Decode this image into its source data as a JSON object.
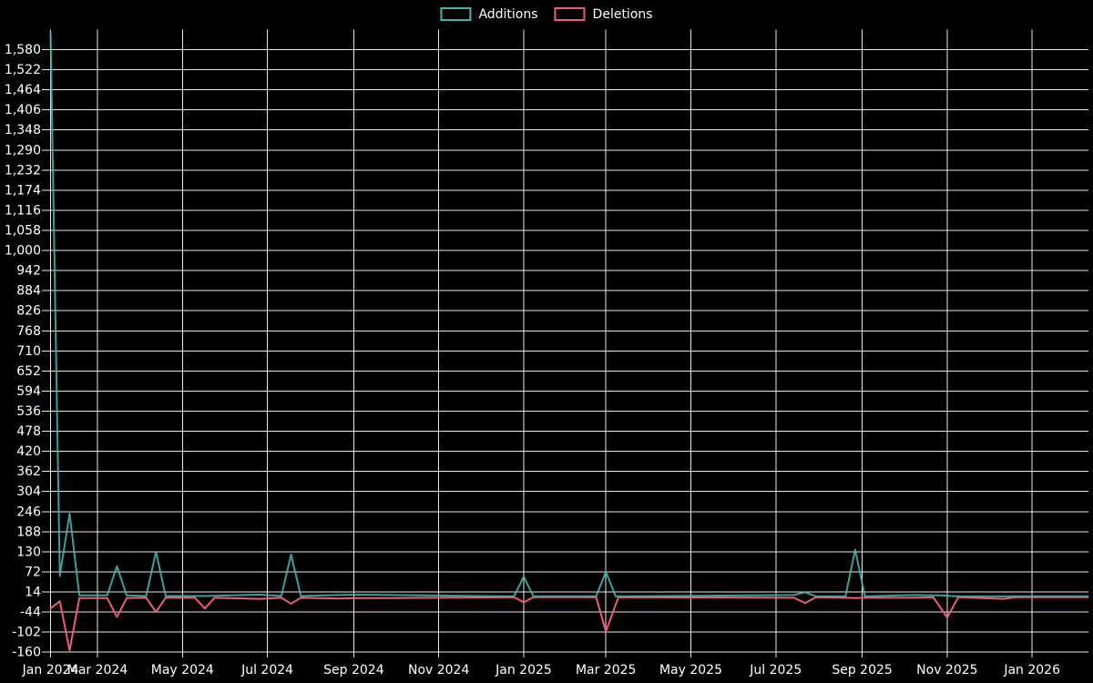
{
  "chart_data": {
    "type": "line",
    "title": "",
    "background_color": "#000000",
    "grid": {
      "visible": true,
      "color": "#e8e8e8"
    },
    "text_color": "#ffffff",
    "legend": [
      {
        "label": "Additions",
        "color": "#45b5b0"
      },
      {
        "label": "Deletions",
        "color": "#ef5b7b"
      }
    ],
    "legend_position": "top-center",
    "y_axis": {
      "min": -160,
      "max": 1580,
      "step": 58,
      "tick_labels": [
        "-160",
        "-102",
        "-44",
        "14",
        "72",
        "130",
        "188",
        "246",
        "304",
        "362",
        "420",
        "478",
        "536",
        "594",
        "652",
        "710",
        "768",
        "826",
        "884",
        "942",
        "1,000",
        "1,058",
        "1,116",
        "1,174",
        "1,232",
        "1,290",
        "1,348",
        "1,406",
        "1,464",
        "1,522",
        "1,580"
      ]
    },
    "x_axis": {
      "ticks": [
        {
          "label": "Jan 2024",
          "date": "2024-01-27"
        },
        {
          "label": "Mar 2024",
          "date": "2024-03-01"
        },
        {
          "label": "May 2024",
          "date": "2024-05-01"
        },
        {
          "label": "Jul 2024",
          "date": "2024-07-01"
        },
        {
          "label": "Sep 2024",
          "date": "2024-09-01"
        },
        {
          "label": "Nov 2024",
          "date": "2024-11-01"
        },
        {
          "label": "Jan 2025",
          "date": "2025-01-01"
        },
        {
          "label": "Mar 2025",
          "date": "2025-03-01"
        },
        {
          "label": "May 2025",
          "date": "2025-05-01"
        },
        {
          "label": "Jul 2025",
          "date": "2025-07-01"
        },
        {
          "label": "Sep 2025",
          "date": "2025-09-01"
        },
        {
          "label": "Nov 2025",
          "date": "2025-11-01"
        },
        {
          "label": "Jan 2026",
          "date": "2026-01-01"
        }
      ]
    },
    "series": [
      {
        "name": "Additions",
        "color": "#45b5b0",
        "points": [
          [
            "2024-01-27",
            1630
          ],
          [
            "2024-02-03",
            60
          ],
          [
            "2024-02-10",
            240
          ],
          [
            "2024-02-17",
            4
          ],
          [
            "2024-03-08",
            4
          ],
          [
            "2024-03-15",
            88
          ],
          [
            "2024-03-22",
            4
          ],
          [
            "2024-04-05",
            2
          ],
          [
            "2024-04-12",
            130
          ],
          [
            "2024-04-19",
            2
          ],
          [
            "2024-05-17",
            2
          ],
          [
            "2024-06-26",
            6
          ],
          [
            "2024-07-11",
            2
          ],
          [
            "2024-07-18",
            122
          ],
          [
            "2024-07-25",
            2
          ],
          [
            "2024-08-21",
            5
          ],
          [
            "2024-09-06",
            6
          ],
          [
            "2024-09-27",
            5
          ],
          [
            "2024-12-25",
            1
          ],
          [
            "2025-01-01",
            58
          ],
          [
            "2025-01-08",
            1
          ],
          [
            "2025-02-22",
            1
          ],
          [
            "2025-03-01",
            72
          ],
          [
            "2025-03-08",
            1
          ],
          [
            "2025-07-14",
            5
          ],
          [
            "2025-07-22",
            13
          ],
          [
            "2025-07-30",
            1
          ],
          [
            "2025-08-20",
            1
          ],
          [
            "2025-08-27",
            136
          ],
          [
            "2025-09-03",
            1
          ],
          [
            "2025-10-08",
            5
          ],
          [
            "2025-10-27",
            4
          ],
          [
            "2025-11-08",
            1
          ],
          [
            "2026-02-10",
            1
          ]
        ]
      },
      {
        "name": "Deletions",
        "color": "#ef5b7b",
        "points": [
          [
            "2024-01-27",
            -34
          ],
          [
            "2024-02-03",
            -13
          ],
          [
            "2024-02-10",
            -155
          ],
          [
            "2024-02-17",
            -4
          ],
          [
            "2024-03-08",
            -4
          ],
          [
            "2024-03-15",
            -58
          ],
          [
            "2024-03-22",
            -4
          ],
          [
            "2024-04-05",
            -3
          ],
          [
            "2024-04-12",
            -44
          ],
          [
            "2024-04-19",
            -3
          ],
          [
            "2024-05-10",
            -3
          ],
          [
            "2024-05-17",
            -34
          ],
          [
            "2024-05-24",
            -3
          ],
          [
            "2024-06-26",
            -6
          ],
          [
            "2024-07-11",
            -3
          ],
          [
            "2024-07-18",
            -20
          ],
          [
            "2024-07-25",
            -3
          ],
          [
            "2024-08-21",
            -5
          ],
          [
            "2024-09-06",
            -4
          ],
          [
            "2024-09-27",
            -4
          ],
          [
            "2024-12-25",
            -1
          ],
          [
            "2025-01-01",
            -16
          ],
          [
            "2025-01-08",
            -1
          ],
          [
            "2025-02-22",
            -1
          ],
          [
            "2025-03-01",
            -100
          ],
          [
            "2025-03-10",
            -1
          ],
          [
            "2025-07-14",
            -3
          ],
          [
            "2025-07-22",
            -18
          ],
          [
            "2025-07-30",
            -1
          ],
          [
            "2025-08-20",
            -3
          ],
          [
            "2025-08-27",
            -4
          ],
          [
            "2025-09-03",
            -3
          ],
          [
            "2025-10-08",
            -3
          ],
          [
            "2025-10-22",
            -1
          ],
          [
            "2025-11-01",
            -60
          ],
          [
            "2025-11-09",
            -1
          ],
          [
            "2025-12-12",
            -6
          ],
          [
            "2025-12-20",
            -1
          ],
          [
            "2026-02-10",
            -1
          ]
        ]
      }
    ]
  }
}
